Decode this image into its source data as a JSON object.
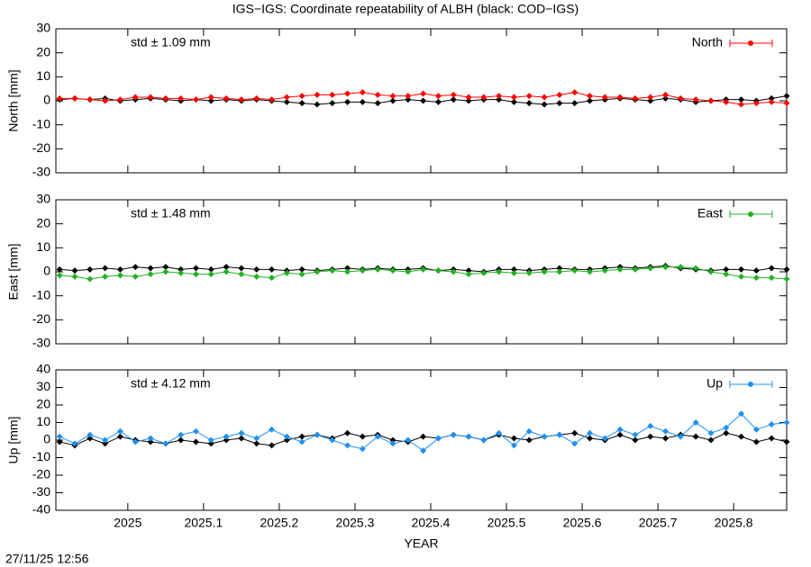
{
  "title": "IGS−IGS: Coordinate repeatability of ALBH (black: COD−IGS)",
  "footer": "27/11/25 12:56",
  "chart_data": [
    {
      "type": "line",
      "ylabel": "North [mm]",
      "annotation": "std ± 1.09 mm",
      "legend": "top-right",
      "x": [
        2024.91,
        2024.93,
        2024.95,
        2024.97,
        2024.99,
        2025.01,
        2025.03,
        2025.05,
        2025.07,
        2025.09,
        2025.11,
        2025.13,
        2025.15,
        2025.17,
        2025.19,
        2025.21,
        2025.23,
        2025.25,
        2025.27,
        2025.29,
        2025.31,
        2025.33,
        2025.35,
        2025.37,
        2025.39,
        2025.41,
        2025.43,
        2025.45,
        2025.47,
        2025.49,
        2025.51,
        2025.53,
        2025.55,
        2025.57,
        2025.59,
        2025.61,
        2025.63,
        2025.65,
        2025.67,
        2025.69,
        2025.71,
        2025.73,
        2025.75,
        2025.77,
        2025.79,
        2025.81,
        2025.83,
        2025.85,
        2025.87
      ],
      "series": [
        {
          "color": "#000000",
          "values": [
            0.5,
            1,
            0.5,
            1,
            0,
            0.5,
            1,
            0.5,
            0,
            0.5,
            0,
            0.5,
            0,
            0.5,
            0,
            -0.5,
            -1,
            -1.5,
            -1,
            -0.5,
            -0.5,
            -1,
            0,
            0.5,
            0,
            -0.5,
            0.5,
            0,
            0.5,
            0.5,
            -0.5,
            -1,
            -1.5,
            -1,
            -1,
            0,
            0.5,
            1,
            0.5,
            0,
            1,
            0.5,
            -0.5,
            0,
            0.5,
            0.5,
            0,
            1,
            2
          ]
        },
        {
          "name": "North",
          "color": "#ff0000",
          "values": [
            1,
            1,
            0.5,
            0,
            0.5,
            1.5,
            1.5,
            1,
            1,
            0.5,
            1.5,
            1,
            0.5,
            1,
            0.5,
            1.5,
            2,
            2.5,
            2.5,
            3,
            3.5,
            2.5,
            2,
            2,
            3,
            2,
            2.5,
            1.5,
            1.5,
            2,
            1.5,
            2,
            1.5,
            2.5,
            3.5,
            2,
            1.5,
            1.5,
            1,
            1.5,
            2.5,
            1,
            0.5,
            0,
            -0.5,
            -1.5,
            -1,
            -0.5,
            -1
          ]
        }
      ],
      "xlim": [
        2024.905,
        2025.87
      ],
      "xticks": [
        2025,
        2025.1,
        2025.2,
        2025.3,
        2025.4,
        2025.5,
        2025.6,
        2025.7,
        2025.8
      ],
      "ylim": [
        -30,
        30
      ],
      "yticks": [
        -30,
        -20,
        -10,
        0,
        10,
        20,
        30
      ]
    },
    {
      "type": "line",
      "ylabel": "East [mm]",
      "annotation": "std ± 1.48 mm",
      "legend": "top-right",
      "x": [
        2024.91,
        2024.93,
        2024.95,
        2024.97,
        2024.99,
        2025.01,
        2025.03,
        2025.05,
        2025.07,
        2025.09,
        2025.11,
        2025.13,
        2025.15,
        2025.17,
        2025.19,
        2025.21,
        2025.23,
        2025.25,
        2025.27,
        2025.29,
        2025.31,
        2025.33,
        2025.35,
        2025.37,
        2025.39,
        2025.41,
        2025.43,
        2025.45,
        2025.47,
        2025.49,
        2025.51,
        2025.53,
        2025.55,
        2025.57,
        2025.59,
        2025.61,
        2025.63,
        2025.65,
        2025.67,
        2025.69,
        2025.71,
        2025.73,
        2025.75,
        2025.77,
        2025.79,
        2025.81,
        2025.83,
        2025.85,
        2025.87
      ],
      "series": [
        {
          "color": "#000000",
          "values": [
            1,
            0.5,
            1,
            1.5,
            1,
            2,
            1.5,
            2,
            1,
            1.5,
            1,
            2,
            1.5,
            1,
            1,
            0.5,
            1,
            0.5,
            1,
            1.5,
            1,
            1.5,
            1,
            1,
            1.5,
            0.5,
            1,
            0.5,
            0,
            1,
            1,
            0.5,
            1,
            1.5,
            1,
            1,
            1.5,
            2,
            1.5,
            2,
            2.5,
            1.5,
            1,
            0.5,
            1,
            1,
            0.5,
            1.5,
            1
          ]
        },
        {
          "name": "East",
          "color": "#22b022",
          "values": [
            -1.5,
            -2,
            -3,
            -2,
            -1.5,
            -2,
            -1,
            0,
            -0.5,
            -1,
            -1,
            0,
            -1,
            -2,
            -2.5,
            -0.5,
            -1,
            0,
            0.5,
            0,
            0.5,
            1,
            0.5,
            0,
            1,
            0.5,
            0,
            -1,
            -0.5,
            0,
            -0.5,
            -0.5,
            0,
            0,
            0.5,
            0,
            0.5,
            1,
            1,
            1.5,
            2,
            2,
            1.5,
            0,
            -1,
            -2,
            -2.5,
            -2.5,
            -3
          ]
        }
      ],
      "xlim": [
        2024.905,
        2025.87
      ],
      "xticks": [
        2025,
        2025.1,
        2025.2,
        2025.3,
        2025.4,
        2025.5,
        2025.6,
        2025.7,
        2025.8
      ],
      "ylim": [
        -30,
        30
      ],
      "yticks": [
        -30,
        -20,
        -10,
        0,
        10,
        20,
        30
      ]
    },
    {
      "type": "line",
      "ylabel": "Up [mm]",
      "xlabel": "YEAR",
      "annotation": "std ± 4.12 mm",
      "legend": "top-right",
      "x": [
        2024.91,
        2024.93,
        2024.95,
        2024.97,
        2024.99,
        2025.01,
        2025.03,
        2025.05,
        2025.07,
        2025.09,
        2025.11,
        2025.13,
        2025.15,
        2025.17,
        2025.19,
        2025.21,
        2025.23,
        2025.25,
        2025.27,
        2025.29,
        2025.31,
        2025.33,
        2025.35,
        2025.37,
        2025.39,
        2025.41,
        2025.43,
        2025.45,
        2025.47,
        2025.49,
        2025.51,
        2025.53,
        2025.55,
        2025.57,
        2025.59,
        2025.61,
        2025.63,
        2025.65,
        2025.67,
        2025.69,
        2025.71,
        2025.73,
        2025.75,
        2025.77,
        2025.79,
        2025.81,
        2025.83,
        2025.85,
        2025.87
      ],
      "series": [
        {
          "color": "#000000",
          "values": [
            -1,
            -3,
            1,
            -2,
            2,
            0,
            -1,
            -2,
            0,
            -1,
            -2,
            0,
            1,
            -2,
            -3,
            0,
            2,
            3,
            1,
            4,
            2,
            3,
            0,
            -1,
            2,
            1,
            3,
            2,
            0,
            3,
            1,
            0,
            2,
            3,
            4,
            1,
            0,
            3,
            0,
            2,
            1,
            3,
            2,
            0,
            4,
            2,
            -1,
            1,
            -1
          ]
        },
        {
          "name": "Up",
          "color": "#2090f0",
          "values": [
            2,
            -2,
            3,
            0,
            5,
            -1,
            1,
            -2,
            3,
            5,
            0,
            2,
            4,
            1,
            6,
            2,
            -1,
            3,
            0,
            -3,
            -5,
            2,
            -2,
            0,
            -6,
            1,
            3,
            2,
            0,
            4,
            -3,
            5,
            2,
            3,
            -2,
            4,
            1,
            6,
            3,
            8,
            5,
            2,
            10,
            4,
            7,
            15,
            6,
            9,
            10
          ]
        }
      ],
      "xlim": [
        2024.905,
        2025.87
      ],
      "xticks": [
        2025,
        2025.1,
        2025.2,
        2025.3,
        2025.4,
        2025.5,
        2025.6,
        2025.7,
        2025.8
      ],
      "ylim": [
        -40,
        40
      ],
      "yticks": [
        -40,
        -30,
        -20,
        -10,
        0,
        10,
        20,
        30,
        40
      ]
    }
  ]
}
